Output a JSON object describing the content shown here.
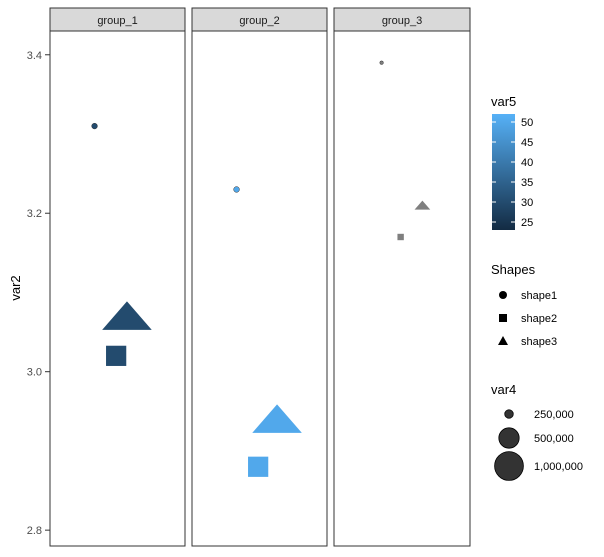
{
  "chart_data": {
    "type": "scatter",
    "ylabel": "var2",
    "xlabel": "",
    "ylim": [
      2.78,
      3.43
    ],
    "yticks": [
      2.8,
      3.0,
      3.2,
      3.4
    ],
    "yticklabels": [
      "2.8",
      "3.0",
      "3.2",
      "3.4"
    ],
    "xlim": [
      0,
      1
    ],
    "facets": [
      "group_1",
      "group_2",
      "group_3"
    ],
    "points": [
      {
        "facet": "group_1",
        "x": 0.33,
        "y": 3.31,
        "shape": "shape1",
        "var4": 250000,
        "var5": 30
      },
      {
        "facet": "group_1",
        "x": 0.57,
        "y": 3.07,
        "shape": "shape3",
        "var4": 1000000,
        "var5": 30
      },
      {
        "facet": "group_1",
        "x": 0.49,
        "y": 3.02,
        "shape": "shape2",
        "var4": 1000000,
        "var5": 30
      },
      {
        "facet": "group_2",
        "x": 0.33,
        "y": 3.23,
        "shape": "shape1",
        "var4": 250000,
        "var5": 50
      },
      {
        "facet": "group_2",
        "x": 0.63,
        "y": 2.94,
        "shape": "shape3",
        "var4": 1000000,
        "var5": 50
      },
      {
        "facet": "group_2",
        "x": 0.49,
        "y": 2.88,
        "shape": "shape2",
        "var4": 1000000,
        "var5": 50
      },
      {
        "facet": "group_3",
        "x": 0.35,
        "y": 3.39,
        "shape": "shape1",
        "var4": 100000,
        "var5": null
      },
      {
        "facet": "group_3",
        "x": 0.65,
        "y": 3.21,
        "shape": "shape3",
        "var4": 100000,
        "var5": null
      },
      {
        "facet": "group_3",
        "x": 0.49,
        "y": 3.17,
        "shape": "shape2",
        "var4": 100000,
        "var5": null
      }
    ],
    "legends": {
      "color": {
        "title": "var5",
        "range": [
          23,
          52
        ],
        "breaks": [
          25,
          30,
          35,
          40,
          45,
          50
        ],
        "labels": [
          "25",
          "30",
          "35",
          "40",
          "45",
          "50"
        ],
        "low_color": "#132B43",
        "high_color": "#56B1F7",
        "na_color": "#7F7F7F"
      },
      "shape": {
        "title": "Shapes",
        "items": [
          {
            "label": "shape1",
            "shape": "circle"
          },
          {
            "label": "shape2",
            "shape": "square"
          },
          {
            "label": "shape3",
            "shape": "triangle"
          }
        ]
      },
      "size": {
        "title": "var4",
        "items": [
          {
            "label": "250,000",
            "value": 250000
          },
          {
            "label": "500,000",
            "value": 500000
          },
          {
            "label": "1,000,000",
            "value": 1000000
          }
        ]
      }
    },
    "grid": false,
    "legend_position": "right"
  }
}
